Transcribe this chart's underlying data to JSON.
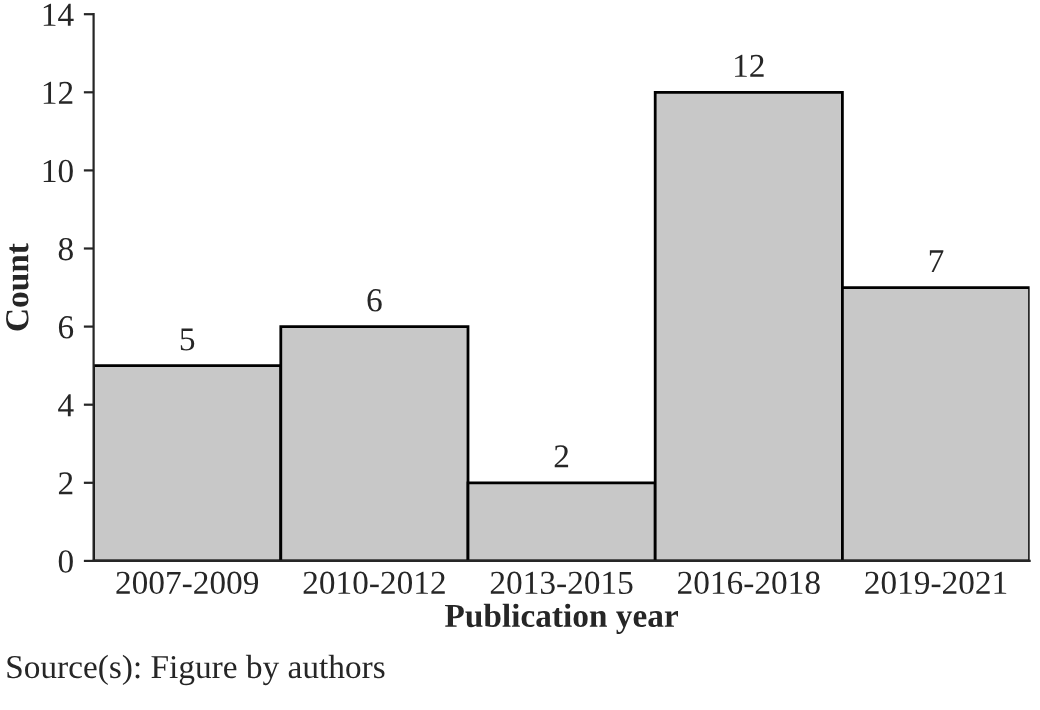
{
  "chart_data": {
    "type": "bar",
    "xlabel": "Publication year",
    "ylabel": "Count",
    "categories": [
      "2007-2009",
      "2010-2012",
      "2013-2015",
      "2016-2018",
      "2019-2021"
    ],
    "values": [
      5,
      6,
      2,
      12,
      7
    ],
    "color": "#c8c8c8",
    "ylim": [
      0,
      14
    ],
    "yticks": [
      0,
      2,
      4,
      6,
      8,
      10,
      12,
      14
    ],
    "grid": false,
    "data_labels": true,
    "annotations": [
      "Source(s): Figure by authors"
    ]
  }
}
